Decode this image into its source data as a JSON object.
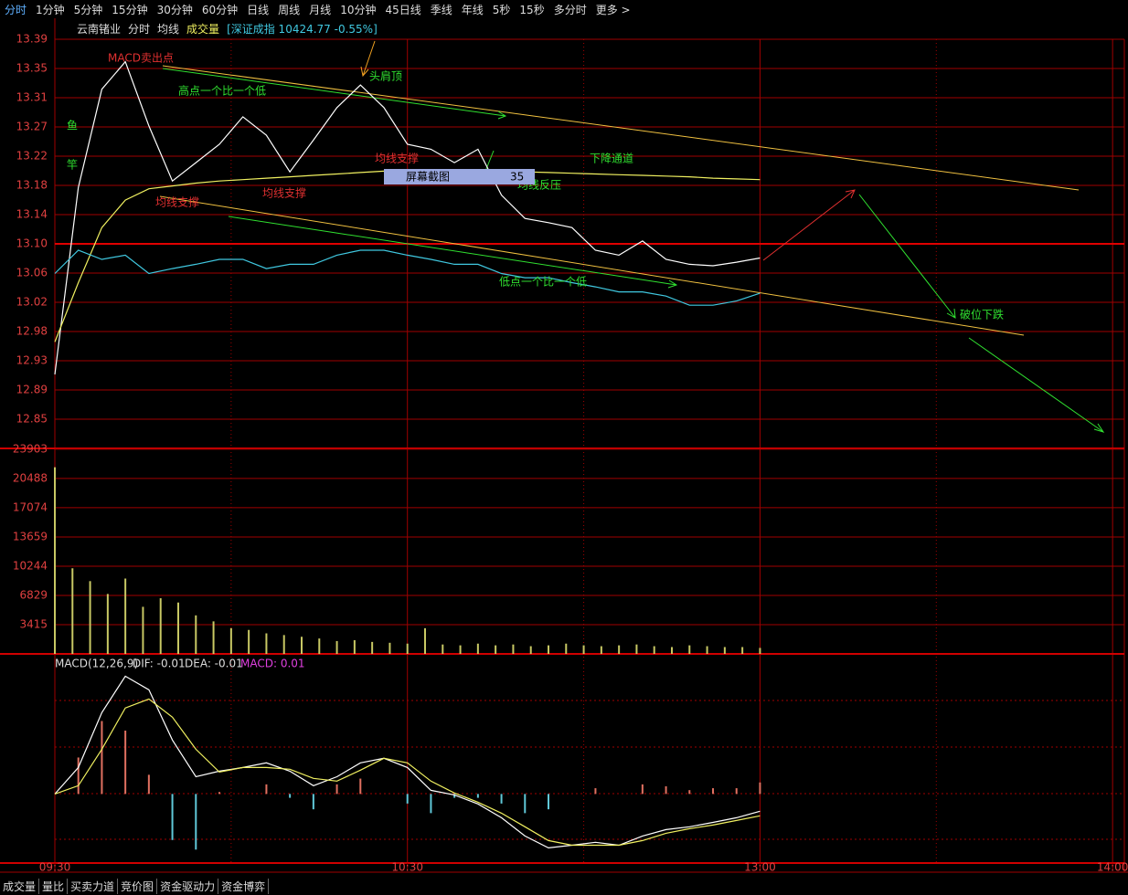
{
  "toolbar": [
    "分时",
    "1分钟",
    "5分钟",
    "15分钟",
    "30分钟",
    "60分钟",
    "日线",
    "周线",
    "月线",
    "10分钟",
    "45日线",
    "季线",
    "年线",
    "5秒",
    "15秒",
    "多分时",
    "更多 >"
  ],
  "header": {
    "stock": "云南锗业",
    "mode": "分时",
    "avg": "均线",
    "volume": "成交量",
    "index": "[深证成指 10424.77 -0.55%]"
  },
  "overlay": {
    "label": "屏幕截图",
    "number": "35"
  },
  "bottom_tabs": [
    "成交量",
    "量比",
    "买卖力道",
    "竞价图",
    "资金驱动力",
    "资金博弈"
  ],
  "chart_data": [
    {
      "type": "line",
      "xlim": [
        0,
        182
      ],
      "ylim": [
        12.8102,
        13.3898
      ],
      "yticks": [
        {
          "value": 13.3898,
          "label": "13.39"
        },
        {
          "value": 13.3484,
          "label": "13.35"
        },
        {
          "value": 13.307,
          "label": "13.31"
        },
        {
          "value": 13.2656,
          "label": "13.27"
        },
        {
          "value": 13.2242,
          "label": "13.22"
        },
        {
          "value": 13.1828,
          "label": "13.18"
        },
        {
          "value": 13.1414,
          "label": "13.14"
        },
        {
          "value": 13.1,
          "label": "13.10"
        },
        {
          "value": 13.0586,
          "label": "13.06"
        },
        {
          "value": 13.0172,
          "label": "13.02"
        },
        {
          "value": 12.9758,
          "label": "12.98"
        },
        {
          "value": 12.9344,
          "label": "12.93"
        },
        {
          "value": 12.893,
          "label": "12.89"
        },
        {
          "value": 12.8516,
          "label": "12.85"
        }
      ],
      "x": [
        0,
        4,
        8,
        12,
        16,
        20,
        24,
        28,
        32,
        36,
        40,
        44,
        48,
        52,
        56,
        60,
        64,
        68,
        72,
        76,
        80,
        84,
        88,
        92,
        96,
        100,
        104,
        108,
        112,
        116,
        120
      ],
      "series": [
        {
          "name": "分时",
          "color": "#ffffff",
          "values": [
            12.915,
            13.18,
            13.319,
            13.358,
            13.267,
            13.189,
            13.215,
            13.241,
            13.28,
            13.254,
            13.202,
            13.247,
            13.293,
            13.325,
            13.293,
            13.241,
            13.234,
            13.215,
            13.234,
            13.169,
            13.136,
            13.13,
            13.123,
            13.091,
            13.084,
            13.104,
            13.078,
            13.071,
            13.069,
            13.074,
            13.08
          ]
        },
        {
          "name": "均线",
          "color": "#f0f060",
          "values": [
            12.961,
            13.045,
            13.123,
            13.162,
            13.178,
            13.182,
            13.186,
            13.189,
            13.191,
            13.193,
            13.195,
            13.197,
            13.199,
            13.201,
            13.203,
            13.204,
            13.204,
            13.203,
            13.203,
            13.202,
            13.202,
            13.201,
            13.2,
            13.199,
            13.198,
            13.197,
            13.196,
            13.195,
            13.193,
            13.192,
            13.191
          ]
        },
        {
          "name": "[深证成指 10424.77 -0.55%]",
          "color": "#40c8e0",
          "values": [
            13.058,
            13.091,
            13.078,
            13.084,
            13.058,
            13.065,
            13.071,
            13.078,
            13.078,
            13.065,
            13.071,
            13.071,
            13.084,
            13.091,
            13.091,
            13.084,
            13.078,
            13.071,
            13.071,
            13.058,
            13.052,
            13.052,
            13.045,
            13.039,
            13.032,
            13.032,
            13.026,
            13.013,
            13.013,
            13.019,
            13.03
          ]
        }
      ],
      "annotations": [
        "MACD卖出点",
        "高点一个比一个低",
        "头肩顶",
        "鱼",
        "竿",
        "均线支撑",
        "均线支撑",
        "均线支撑",
        "下降通道",
        "均线反压",
        "低点一个比一个低",
        "破位下跌"
      ]
    },
    {
      "type": "bar",
      "color": "#c8c864",
      "xlim": [
        0,
        182
      ],
      "ylim": [
        0,
        24000
      ],
      "yticks": [
        3415,
        6829,
        10244,
        13659,
        17074,
        20488,
        23903
      ],
      "x": [
        0,
        3,
        6,
        9,
        12,
        15,
        18,
        21,
        24,
        27,
        30,
        33,
        36,
        39,
        42,
        45,
        48,
        51,
        54,
        57,
        60,
        63,
        66,
        69,
        72,
        75,
        78,
        81,
        84,
        87,
        90,
        93,
        96,
        99,
        102,
        105,
        108,
        111,
        114,
        117,
        120
      ],
      "values": [
        21800,
        10000,
        8500,
        7000,
        8800,
        5500,
        6500,
        6000,
        4500,
        3800,
        3000,
        2800,
        2400,
        2200,
        2000,
        1800,
        1500,
        1600,
        1400,
        1300,
        1200,
        3000,
        1100,
        1000,
        1200,
        1000,
        1100,
        900,
        1000,
        1200,
        1000,
        900,
        1000,
        1100,
        900,
        800,
        1000,
        900,
        800,
        800,
        700
      ]
    },
    {
      "type": "line",
      "title": "MACD(12,26,9)",
      "labels": [
        "DIF: -0.01",
        "DEA: -0.01",
        "MACD: 0.01"
      ],
      "xlim": [
        0,
        182
      ],
      "ylim": [
        -0.036,
        0.073
      ],
      "xticks": [
        {
          "value": 0,
          "label": "09:30"
        },
        {
          "value": 60,
          "label": "10:30"
        },
        {
          "value": 120,
          "label": "13:00"
        },
        {
          "value": 180,
          "label": "14:00"
        }
      ],
      "x": [
        0,
        4,
        8,
        12,
        16,
        20,
        24,
        28,
        32,
        36,
        40,
        44,
        48,
        52,
        56,
        60,
        64,
        68,
        72,
        76,
        80,
        84,
        88,
        92,
        96,
        100,
        104,
        108,
        112,
        116,
        120
      ],
      "series": [
        {
          "color": "#ffffff",
          "values": [
            0,
            0.0138,
            0.0424,
            0.0614,
            0.0543,
            0.0281,
            0.009,
            0.0119,
            0.0138,
            0.0162,
            0.0119,
            0.0043,
            0.009,
            0.0162,
            0.0186,
            0.0138,
            0.0019,
            -0.0005,
            -0.0052,
            -0.0124,
            -0.0219,
            -0.0281,
            -0.0267,
            -0.0252,
            -0.0267,
            -0.0219,
            -0.0186,
            -0.0171,
            -0.0148,
            -0.0124,
            -0.009
          ]
        },
        {
          "color": "#f0f060",
          "values": [
            0,
            0.0043,
            0.0233,
            0.0448,
            0.0495,
            0.04,
            0.0233,
            0.0114,
            0.0138,
            0.0138,
            0.0129,
            0.0081,
            0.0067,
            0.0124,
            0.0186,
            0.0162,
            0.0067,
            0.0005,
            -0.0043,
            -0.01,
            -0.0171,
            -0.0243,
            -0.0267,
            -0.0267,
            -0.0267,
            -0.0243,
            -0.0205,
            -0.0181,
            -0.0162,
            -0.0138,
            -0.0114
          ]
        }
      ],
      "histogram": {
        "up_color": "#e07060",
        "down_color": "#60c8d8",
        "values": [
          0,
          0.019,
          0.038,
          0.033,
          0.01,
          -0.024,
          -0.029,
          0.001,
          0,
          0.005,
          -0.002,
          -0.008,
          0.005,
          0.008,
          0,
          -0.005,
          -0.01,
          -0.002,
          -0.002,
          -0.005,
          -0.01,
          -0.008,
          0,
          0.003,
          0,
          0.005,
          0.004,
          0.002,
          0.003,
          0.003,
          0.006
        ]
      }
    }
  ]
}
